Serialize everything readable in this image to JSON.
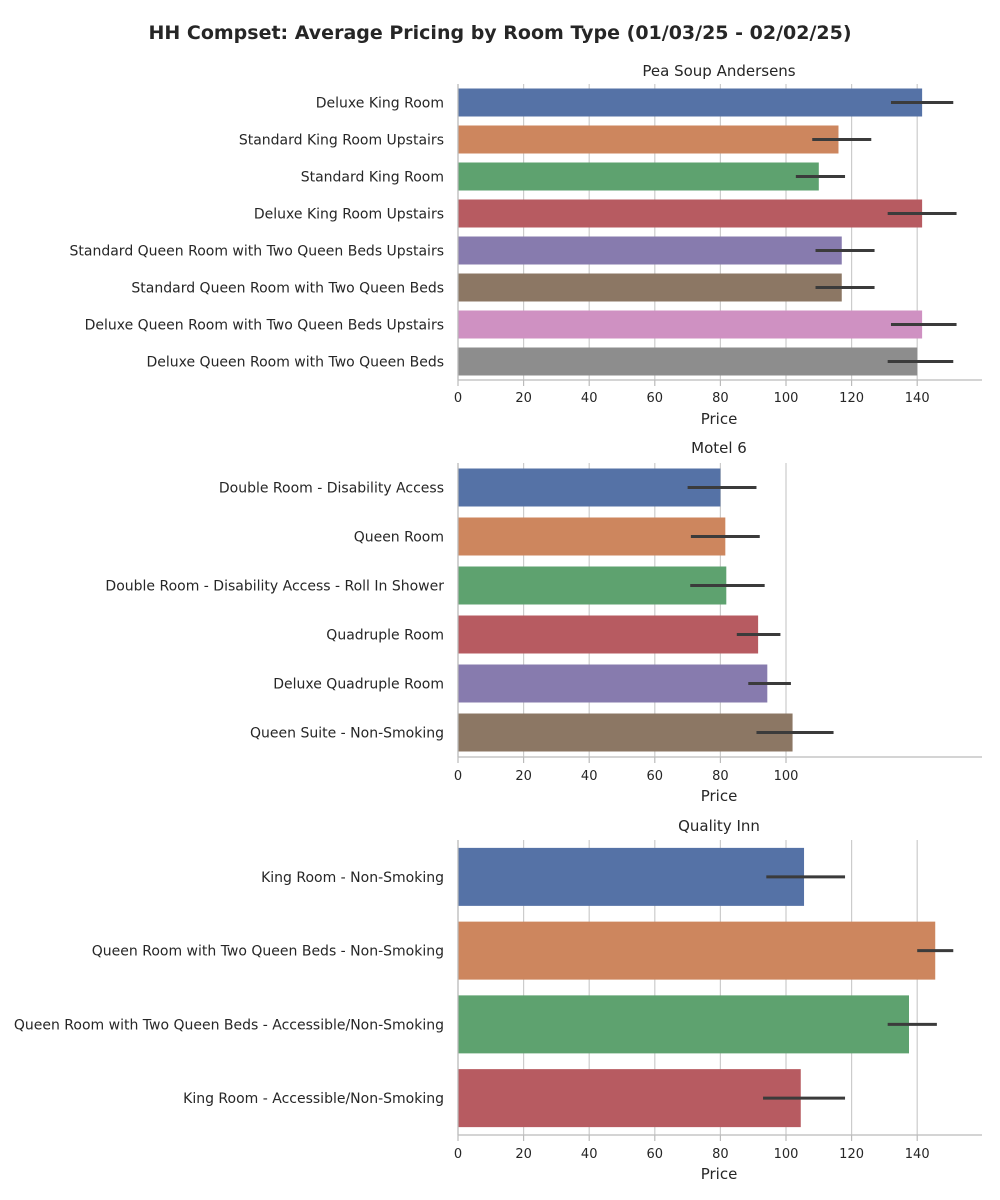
{
  "page": {
    "title": "HH Compset: Average Pricing by Room Type (01/03/25 - 02/02/25)"
  },
  "palette": [
    "#5572a6",
    "#cd865e",
    "#5ea26f",
    "#b75b61",
    "#877bae",
    "#8c7764",
    "#cf91c2",
    "#8d8d8d"
  ],
  "chart_data": [
    {
      "type": "bar",
      "orientation": "horizontal",
      "title": "Pea Soup Andersens",
      "xlabel": "Price",
      "ylabel": "",
      "xlim": [
        0,
        160
      ],
      "xticks": [
        0,
        20,
        40,
        60,
        80,
        100,
        120,
        140
      ],
      "grid": true,
      "categories": [
        "Deluxe King Room",
        "Standard King Room Upstairs",
        "Standard King Room",
        "Deluxe King Room Upstairs",
        "Standard Queen Room with Two Queen Beds Upstairs",
        "Standard Queen Room with Two Queen Beds",
        "Deluxe Queen Room with Two Queen Beds Upstairs",
        "Deluxe Queen Room with Two Queen Beds"
      ],
      "values": [
        141.5,
        116,
        110,
        141.5,
        117,
        117,
        141.5,
        140
      ],
      "error_low": [
        132,
        108,
        103,
        131,
        109,
        109,
        132,
        131
      ],
      "error_high": [
        151,
        126,
        118,
        152,
        127,
        127,
        152,
        151
      ]
    },
    {
      "type": "bar",
      "orientation": "horizontal",
      "title": "Motel 6",
      "xlabel": "Price",
      "ylabel": "",
      "xlim": [
        0,
        120
      ],
      "xticks": [
        0,
        20,
        40,
        60,
        80,
        100
      ],
      "grid": true,
      "categories": [
        "Double Room - Disability Access",
        "Queen Room",
        "Double Room - Disability Access - Roll In Shower",
        "Quadruple Room",
        "Deluxe Quadruple Room",
        "Queen Suite - Non-Smoking"
      ],
      "values": [
        80,
        81.5,
        81.8,
        91.5,
        94.3,
        102
      ],
      "error_low": [
        70,
        71,
        70.8,
        85,
        88.5,
        91
      ],
      "error_high": [
        91,
        92,
        93.5,
        98.3,
        101.5,
        114.5
      ]
    },
    {
      "type": "bar",
      "orientation": "horizontal",
      "title": "Quality Inn",
      "xlabel": "Price",
      "ylabel": "",
      "xlim": [
        0,
        160
      ],
      "xticks": [
        0,
        20,
        40,
        60,
        80,
        100,
        120,
        140
      ],
      "grid": true,
      "categories": [
        "King Room - Non-Smoking",
        "Queen Room with Two Queen Beds - Non-Smoking",
        "Queen Room with Two Queen Beds - Accessible/Non-Smoking",
        "King Room - Accessible/Non-Smoking"
      ],
      "values": [
        105.5,
        145.5,
        137.5,
        104.5
      ],
      "error_low": [
        94,
        140,
        131,
        93
      ],
      "error_high": [
        118,
        151,
        146,
        118
      ]
    }
  ]
}
